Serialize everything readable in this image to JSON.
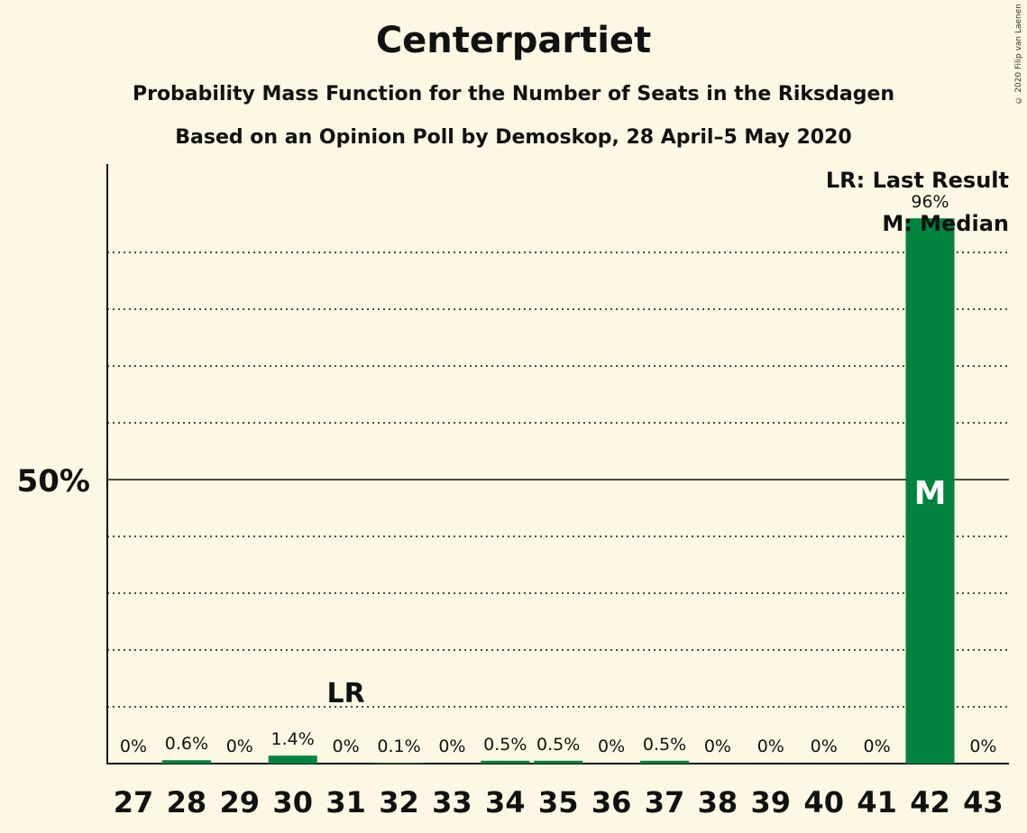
{
  "title": "Centerpartiet",
  "subtitle": "Probability Mass Function for the Number of Seats in the Riksdagen",
  "subtitle2": "Based on an Opinion Poll by Demoskop, 28 April–5 May 2020",
  "copyright": "© 2020 Filip van Laenen",
  "legend": {
    "last_result": "LR: Last Result",
    "median": "M: Median"
  },
  "colors": {
    "bar": "#00843d",
    "background": "#fdf8e3",
    "text": "#111111"
  },
  "chart_data": {
    "type": "bar",
    "title": "Centerpartiet",
    "categories": [
      "27",
      "28",
      "29",
      "30",
      "31",
      "32",
      "33",
      "34",
      "35",
      "36",
      "37",
      "38",
      "39",
      "40",
      "41",
      "42",
      "43"
    ],
    "values": [
      0,
      0.6,
      0,
      1.4,
      0,
      0.1,
      0,
      0.5,
      0.5,
      0,
      0.5,
      0,
      0,
      0,
      0,
      96,
      0
    ],
    "value_labels": [
      "0%",
      "0.6%",
      "0%",
      "1.4%",
      "0%",
      "0.1%",
      "0%",
      "0.5%",
      "0.5%",
      "0%",
      "0.5%",
      "0%",
      "0%",
      "0%",
      "0%",
      "96%",
      "0%"
    ],
    "ylim": [
      0,
      100
    ],
    "ytick_label": "50%",
    "ytick_value": 50,
    "grid": "dotted every 10%",
    "last_result_seat": "31",
    "last_result_label": "LR",
    "median_seat": "42",
    "median_label": "M",
    "legend_position": "top-right"
  }
}
